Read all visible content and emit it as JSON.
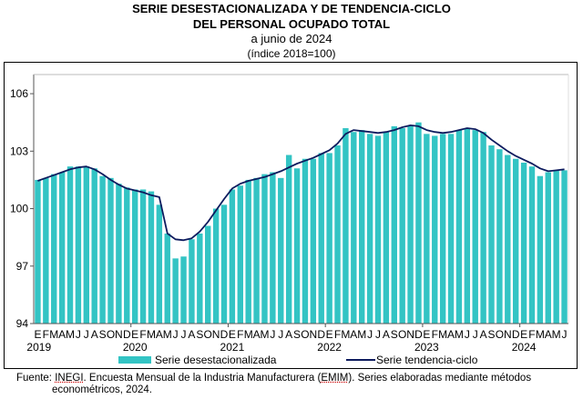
{
  "chart_data": {
    "type": "bar",
    "title": "SERIE DESESTACIONALIZADA Y DE TENDENCIA-CICLO",
    "title_line2": "DEL PERSONAL OCUPADO TOTAL",
    "subtitle": "a junio de 2024",
    "subtitle2": "(índice 2018=100)",
    "ylim": [
      94,
      107
    ],
    "yticks": [
      "94",
      "97",
      "100",
      "103",
      "106"
    ],
    "ytick_values": [
      94,
      97,
      100,
      103,
      106
    ],
    "month_letters": [
      "E",
      "F",
      "M",
      "A",
      "M",
      "J",
      "J",
      "A",
      "S",
      "O",
      "N",
      "D"
    ],
    "years": [
      "2019",
      "2020",
      "2021",
      "2022",
      "2023",
      "2024"
    ],
    "grid": false,
    "legend_position": "bottom",
    "colors": {
      "bars": "#33C4C4",
      "trend": "#0D1B5E"
    },
    "series": [
      {
        "name": "Serie desestacionalizada",
        "type": "bar",
        "values": [
          101.5,
          101.6,
          101.8,
          101.9,
          102.2,
          102.2,
          102.2,
          102.1,
          101.7,
          101.6,
          101.3,
          101.1,
          101.0,
          101.0,
          100.9,
          100.2,
          98.7,
          97.4,
          97.5,
          98.4,
          98.7,
          99.1,
          100.0,
          100.2,
          101.0,
          101.2,
          101.5,
          101.6,
          101.8,
          101.9,
          101.6,
          102.8,
          102.1,
          102.6,
          102.6,
          102.9,
          102.9,
          103.3,
          104.2,
          104.0,
          104.1,
          103.9,
          103.8,
          104.0,
          104.3,
          104.2,
          104.3,
          104.5,
          103.9,
          103.8,
          103.9,
          103.9,
          104.1,
          104.2,
          104.1,
          104.0,
          103.3,
          103.1,
          102.8,
          102.6,
          102.4,
          102.2,
          101.7,
          101.9,
          102.0,
          102.0
        ]
      },
      {
        "name": "Serie tendencia-ciclo",
        "type": "line",
        "values": [
          101.45,
          101.6,
          101.75,
          101.9,
          102.05,
          102.15,
          102.2,
          102.05,
          101.8,
          101.5,
          101.25,
          101.05,
          100.95,
          100.85,
          100.7,
          100.6,
          98.7,
          98.4,
          98.35,
          98.45,
          98.8,
          99.3,
          99.9,
          100.5,
          101.05,
          101.3,
          101.45,
          101.55,
          101.65,
          101.8,
          101.95,
          102.15,
          102.35,
          102.5,
          102.65,
          102.85,
          103.05,
          103.4,
          103.9,
          104.1,
          104.05,
          104.0,
          103.95,
          104.0,
          104.1,
          104.25,
          104.35,
          104.3,
          104.1,
          104.0,
          103.95,
          104.0,
          104.1,
          104.2,
          104.15,
          103.95,
          103.6,
          103.3,
          103.0,
          102.75,
          102.55,
          102.35,
          102.1,
          101.95,
          102.0,
          102.05
        ]
      }
    ]
  },
  "source": {
    "prefix": "Fuente:",
    "org": "INEGI",
    "text1": ". Encuesta Mensual de la Industria Manufacturera (",
    "abbr": "EMIM",
    "text2": "). Series elaboradas mediante métodos",
    "line2": "econométricos, 2024."
  }
}
